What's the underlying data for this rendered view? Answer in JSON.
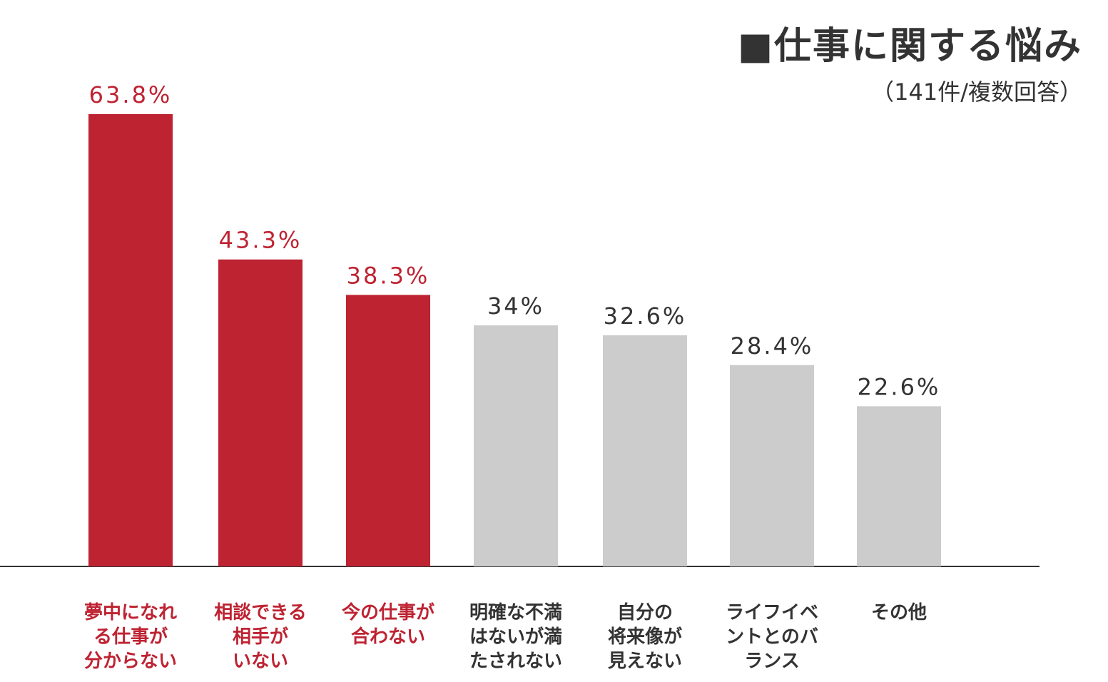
{
  "header": {
    "title": "■仕事に関する悩み",
    "subtitle": "（141件/複数回答）"
  },
  "colors": {
    "highlight": "#be2332",
    "muted": "#cccccc",
    "text_highlight": "#be2332",
    "text_muted": "#333333",
    "axis": "#333333"
  },
  "chart_data": {
    "type": "bar",
    "title": "■仕事に関する悩み",
    "subtitle": "（141件/複数回答）",
    "xlabel": "",
    "ylabel": "",
    "ylim": [
      0,
      70
    ],
    "grid": false,
    "categories": [
      "夢中になれる仕事が分からない",
      "相談できる相手がいない",
      "今の仕事が合わない",
      "明確な不満はないが満たされない",
      "自分の将来像が見えない",
      "ライフイベントとのバランス",
      "その他"
    ],
    "category_lines": [
      "夢中になれ\nる仕事が\n分からない",
      "相談できる\n相手が\nいない",
      "今の仕事が\n合わない",
      "明確な不満\nはないが満\nたされない",
      "自分の\n将来像が\n見えない",
      "ライフイベ\nントとのバ\nランス",
      "その他"
    ],
    "values": [
      63.8,
      43.3,
      38.3,
      34,
      32.6,
      28.4,
      22.6
    ],
    "value_labels": [
      "63.8%",
      "43.3%",
      "38.3%",
      "34%",
      "32.6%",
      "28.4%",
      "22.6%"
    ],
    "highlighted": [
      true,
      true,
      true,
      false,
      false,
      false,
      false
    ]
  }
}
